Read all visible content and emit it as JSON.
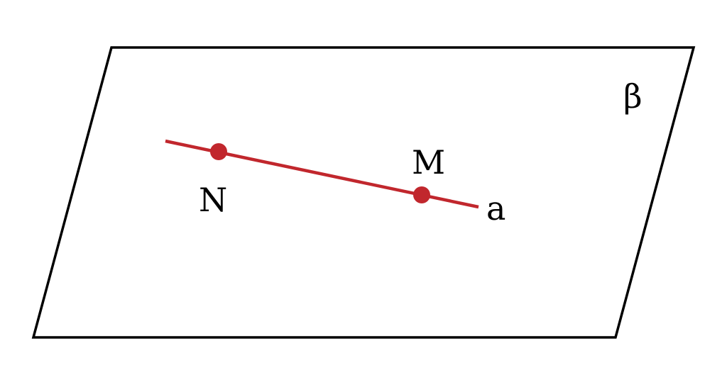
{
  "diagram": {
    "plane_label": "β",
    "line_label": "a",
    "points": [
      {
        "id": "N",
        "label": "N"
      },
      {
        "id": "M",
        "label": "M"
      }
    ],
    "colors": {
      "plane_outline": "#000000",
      "line": "#c1272d",
      "points": "#c1272d",
      "labels": "#000000",
      "background": "#ffffff"
    }
  }
}
